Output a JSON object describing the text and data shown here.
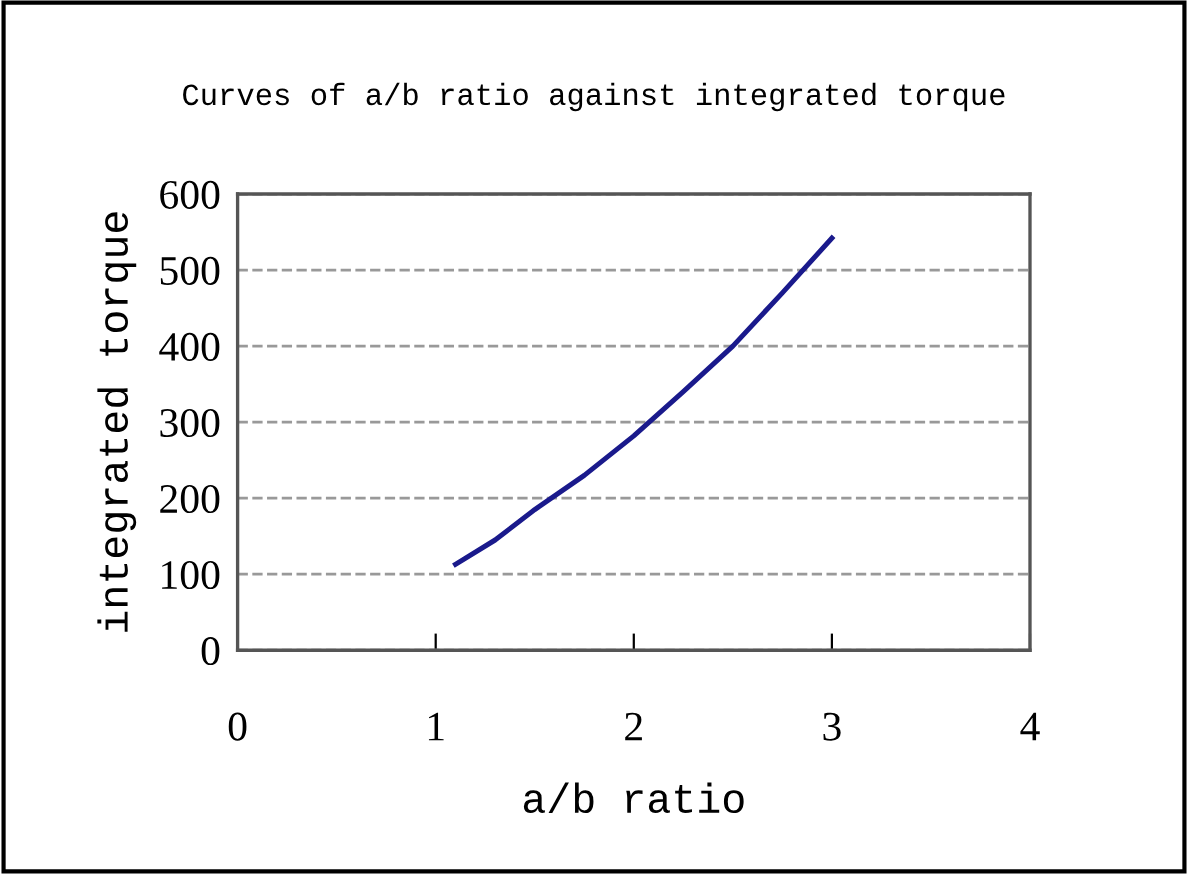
{
  "chart_data": {
    "type": "line",
    "title": "Curves of a/b ratio against integrated torque",
    "xlabel": "a/b ratio",
    "ylabel": "integrated torque",
    "series": [
      {
        "color": "#1a1a8c",
        "x": [
          1.1,
          1.3,
          1.5,
          1.75,
          2.0,
          2.25,
          2.5,
          2.75,
          3.0
        ],
        "values": [
          113,
          145,
          185,
          230,
          282,
          340,
          400,
          470,
          542
        ]
      }
    ],
    "xlim": [
      0,
      4
    ],
    "xticks": [
      0,
      1,
      2,
      3,
      4
    ],
    "ylim": [
      0,
      600
    ],
    "yticks": [
      0,
      100,
      200,
      300,
      400,
      500,
      600
    ],
    "grid": "y",
    "marker": "none",
    "line_style": "solid",
    "legend": false
  }
}
